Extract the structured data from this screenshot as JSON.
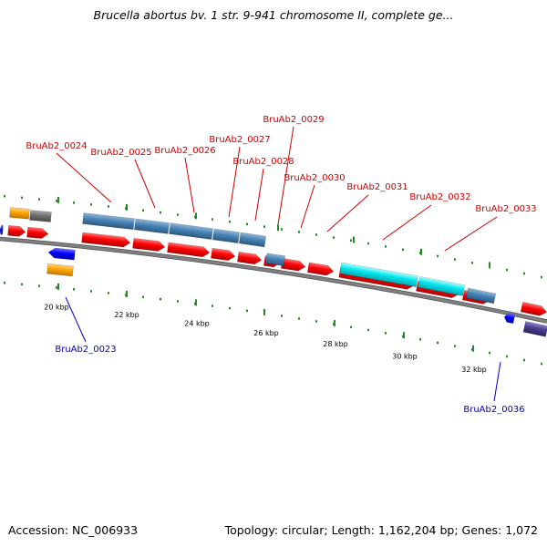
{
  "header": {
    "title": "Brucella abortus bv. 1 str. 9-941 chromosome II, complete ge..."
  },
  "footer": {
    "accession": "Accession: NC_006933",
    "summary": "Topology: circular; Length: 1,162,204 bp; Genes: 1,072"
  },
  "colors": {
    "backbone": "#808080",
    "forward_label": "#cc0000",
    "reverse_label": "#0000cc",
    "tick": "#228b22",
    "cds_red": "#ff0000",
    "cds_steel": "#4682b4",
    "cds_cyan": "#00e5ee",
    "cds_orange": "#ffa500",
    "cds_gray": "#707070",
    "cds_blue": "#0000ff",
    "cds_purple": "#483d8b"
  },
  "scale": {
    "ticks": [
      "20 kbp",
      "22 kbp",
      "24 kbp",
      "26 kbp",
      "28 kbp",
      "30 kbp",
      "32 kbp"
    ]
  },
  "gene_labels": [
    {
      "name": "BruAb2_0024",
      "strand": "forward"
    },
    {
      "name": "BruAb2_0025",
      "strand": "forward"
    },
    {
      "name": "BruAb2_0026",
      "strand": "forward"
    },
    {
      "name": "BruAb2_0027",
      "strand": "forward"
    },
    {
      "name": "BruAb2_0028",
      "strand": "forward"
    },
    {
      "name": "BruAb2_0029",
      "strand": "forward"
    },
    {
      "name": "BruAb2_0030",
      "strand": "forward"
    },
    {
      "name": "BruAb2_0031",
      "strand": "forward"
    },
    {
      "name": "BruAb2_0032",
      "strand": "forward"
    },
    {
      "name": "BruAb2_0033",
      "strand": "forward"
    },
    {
      "name": "BruAb2_0023",
      "strand": "reverse"
    },
    {
      "name": "BruAb2_0036",
      "strand": "reverse"
    }
  ]
}
